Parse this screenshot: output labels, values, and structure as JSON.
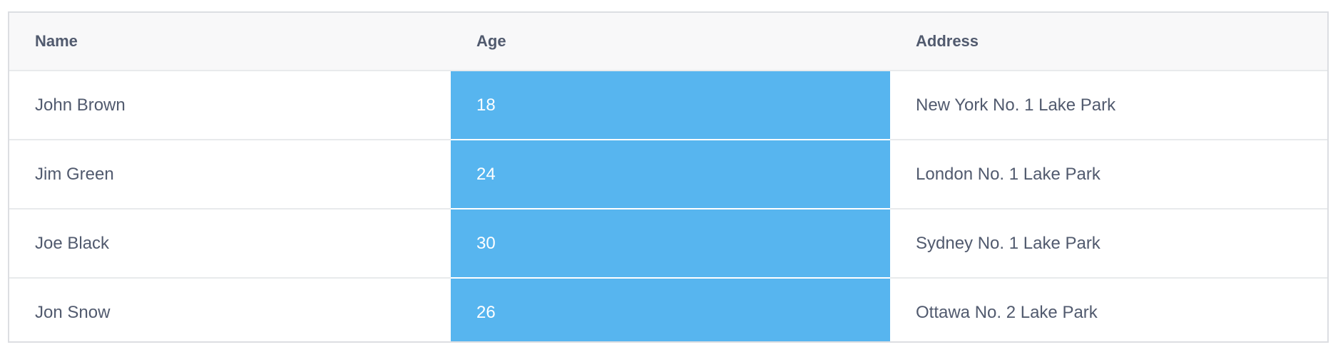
{
  "table": {
    "columns": [
      {
        "key": "name",
        "label": "Name"
      },
      {
        "key": "age",
        "label": "Age"
      },
      {
        "key": "address",
        "label": "Address"
      }
    ],
    "rows": [
      {
        "name": "John Brown",
        "age": "18",
        "address": "New York No. 1 Lake Park"
      },
      {
        "name": "Jim Green",
        "age": "24",
        "address": "London No. 1 Lake Park"
      },
      {
        "name": "Joe Black",
        "age": "30",
        "address": "Sydney No. 1 Lake Park"
      },
      {
        "name": "Jon Snow",
        "age": "26",
        "address": "Ottawa No. 2 Lake Park"
      }
    ],
    "colors": {
      "highlight_column_bg": "#57b5ef",
      "header_bg": "#f8f8f9",
      "text": "#515a6e"
    }
  }
}
